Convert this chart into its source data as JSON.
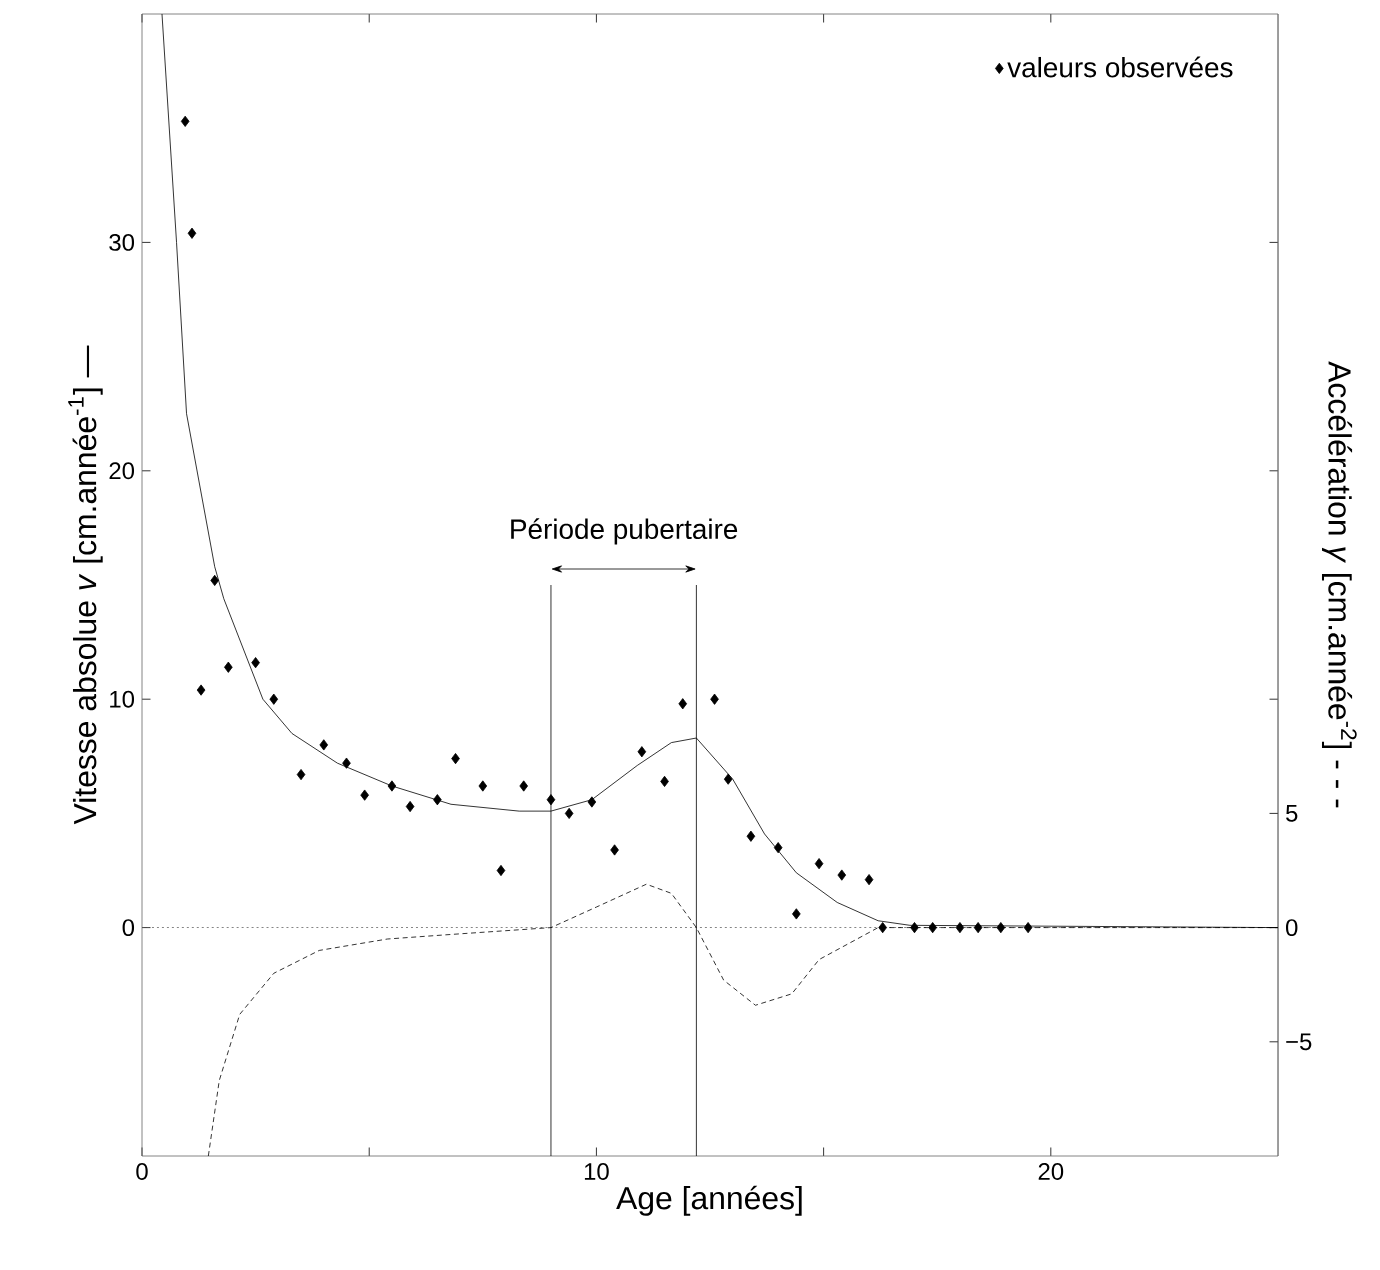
{
  "chart_data": {
    "type": "scatter",
    "xlabel": "Age [années]",
    "ylabel": "Vitesse absolue *v* [cm.année$^{-1}$] —",
    "y2label": "Accélération *γ* [cm.année$^{-2}$] - - -",
    "xlim": [
      0,
      25
    ],
    "ylim": [
      -10,
      40
    ],
    "y2lim": [
      -10,
      40
    ],
    "xticks": [
      0,
      {
        "value": 5,
        "label": null
      },
      10,
      {
        "value": 15,
        "label": null
      },
      20
    ],
    "yticks": [
      0,
      {
        "value": 10,
        "label": "10"
      },
      20,
      30
    ],
    "y2ticks": [
      {
        "value": -5,
        "label": "−5"
      },
      0,
      5
    ],
    "legend": "top right",
    "grid": false,
    "series": [
      {
        "name": "valeurs observées",
        "color": "#000000",
        "marker": "diamond",
        "x": [
          0.95,
          1.1,
          1.3,
          1.6,
          1.9,
          2.5,
          2.9,
          3.5,
          4.0,
          4.5,
          4.9,
          5.5,
          5.9,
          6.5,
          6.9,
          7.5,
          7.9,
          8.4,
          9.0,
          9.4,
          9.9,
          10.4,
          11.0,
          11.5,
          11.9,
          12.6,
          12.9,
          13.4,
          14.0,
          14.4,
          14.9,
          15.4,
          16.0,
          16.3,
          17.0,
          17.4,
          18.0,
          18.4,
          18.9,
          19.5
        ],
        "values": [
          35.3,
          30.4,
          10.4,
          15.2,
          11.4,
          11.6,
          10.0,
          6.7,
          8.0,
          7.2,
          5.8,
          6.2,
          5.3,
          5.6,
          7.4,
          6.2,
          2.5,
          6.2,
          5.6,
          5.0,
          5.5,
          3.4,
          7.7,
          6.4,
          9.8,
          10.0,
          6.5,
          4.0,
          3.5,
          0.6,
          2.8,
          2.3,
          2.1,
          0,
          0,
          0,
          0,
          0,
          0,
          0
        ]
      },
      {
        "type": "line",
        "color": "#000000",
        "line_style": "solid",
        "x": [
          0.44,
          0.76,
          0.98,
          1.6,
          1.8,
          2.66,
          3.3,
          4.3,
          5.5,
          6.8,
          8.3,
          9.0,
          9.9,
          10.9,
          11.65,
          12.2,
          13.0,
          13.7,
          14.4,
          15.3,
          16.2,
          16.9,
          25
        ],
        "values": [
          40,
          30,
          22.5,
          15.8,
          14.4,
          10.0,
          8.5,
          7.2,
          6.2,
          5.4,
          5.1,
          5.1,
          5.6,
          7.1,
          8.1,
          8.3,
          6.5,
          4.1,
          2.4,
          1.1,
          0.3,
          0.1,
          0
        ]
      },
      {
        "type": "line",
        "axis": "y2",
        "color": "#000000",
        "line_style": "dashed",
        "x": [
          1.46,
          1.7,
          2.15,
          2.9,
          3.9,
          5.4,
          6.8,
          9.0,
          10.0,
          11.1,
          11.65,
          12.2,
          12.8,
          13.5,
          14.3,
          14.9,
          16.2,
          25
        ],
        "values": [
          -10,
          -6.7,
          -3.8,
          -2.0,
          -1.0,
          -0.5,
          -0.3,
          0,
          0.9,
          1.9,
          1.5,
          0,
          -2.3,
          -3.4,
          -2.9,
          -1.4,
          0,
          0
        ]
      }
    ],
    "ref_lines": [
      {
        "axis": "y",
        "value": 0,
        "line_style": "dotted",
        "color": "#555555"
      },
      {
        "axis": "x",
        "value": 9.0,
        "color": "#000000"
      },
      {
        "axis": "x",
        "value": 12.2,
        "color": "#000000"
      }
    ],
    "annotations": [
      "Période pubertaire"
    ]
  }
}
